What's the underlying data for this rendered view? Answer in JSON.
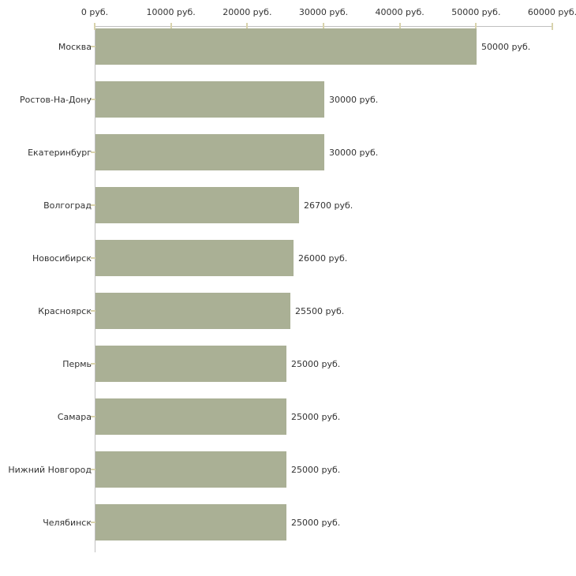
{
  "chart_data": {
    "type": "bar",
    "orientation": "horizontal",
    "title": "",
    "categories": [
      "Москва",
      "Ростов-На-Дону",
      "Екатеринбург",
      "Волгоград",
      "Новосибирск",
      "Красноярск",
      "Пермь",
      "Самара",
      "Нижний Новгород",
      "Челябинск"
    ],
    "values": [
      50000,
      30000,
      30000,
      26700,
      26000,
      25500,
      25000,
      25000,
      25000,
      25000
    ],
    "value_labels": [
      "50000 руб.",
      "30000 руб.",
      "30000 руб.",
      "26700 руб.",
      "26000 руб.",
      "25500 руб.",
      "25000 руб.",
      "25000 руб.",
      "25000 руб.",
      "25000 руб."
    ],
    "unit": "руб.",
    "x_axis": {
      "position": "top",
      "min": 0,
      "max": 60000,
      "tick_values": [
        0,
        10000,
        20000,
        30000,
        40000,
        50000,
        60000
      ],
      "tick_labels": [
        "0 руб.",
        "10000 руб.",
        "20000 руб.",
        "30000 руб.",
        "40000 руб.",
        "50000 руб.",
        "60000 руб."
      ]
    },
    "legend": "none",
    "grid": "off",
    "colors": {
      "bar": "#AAB095",
      "axis_line": "#C0C0C0",
      "tick": "#D9D3AC",
      "text": "#333333",
      "background": "#FFFFFF"
    }
  }
}
